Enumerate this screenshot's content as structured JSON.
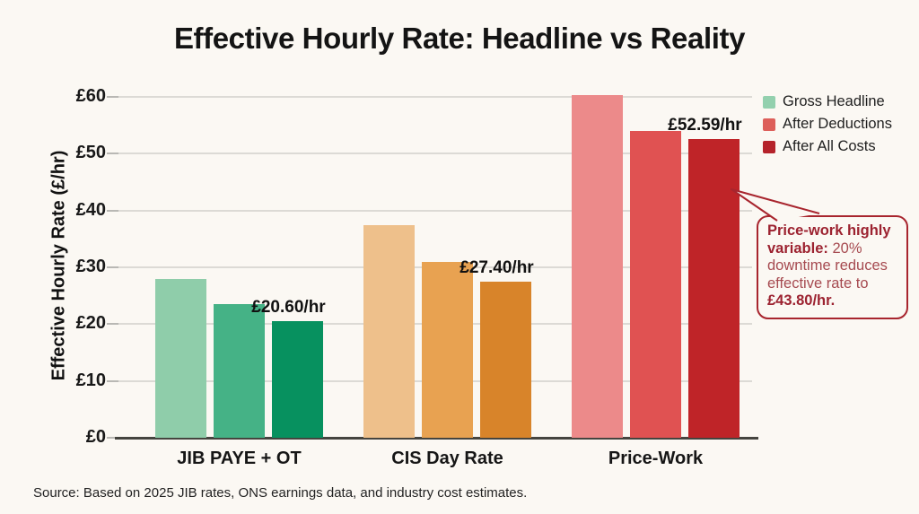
{
  "page": {
    "background": "#fbf8f3"
  },
  "chart_data": {
    "type": "bar",
    "title": "Effective Hourly Rate: Headline vs Reality",
    "ylabel": "Effective Hourly Rate (£/hr)",
    "xlabel": "",
    "ylim": [
      0,
      60
    ],
    "yticks": [
      0,
      10,
      20,
      30,
      40,
      50,
      60
    ],
    "ytick_labels": [
      "£0",
      "£10",
      "£20",
      "£30",
      "£40",
      "£50",
      "£60"
    ],
    "grid": "horizontal",
    "legend_position": "top-right",
    "categories": [
      "JIB PAYE + OT",
      "CIS Day Rate",
      "Price-Work"
    ],
    "series": [
      {
        "name": "Gross Headline",
        "values": [
          28.0,
          37.5,
          60.3
        ]
      },
      {
        "name": "After Deductions",
        "values": [
          23.5,
          31.0,
          54.0
        ]
      },
      {
        "name": "After All Costs",
        "values": [
          20.6,
          27.4,
          52.59
        ]
      }
    ],
    "bar_value_labels": [
      {
        "category_index": 0,
        "series_index": 2,
        "text": "£20.60/hr"
      },
      {
        "category_index": 1,
        "series_index": 2,
        "text": "£27.40/hr"
      },
      {
        "category_index": 2,
        "series_index": 2,
        "text": "£52.59/hr"
      }
    ],
    "category_palettes": [
      [
        "#8fcdaa",
        "#45b286",
        "#07915f"
      ],
      [
        "#eec08b",
        "#e8a251",
        "#d8842a"
      ],
      [
        "#ec8a8a",
        "#e05252",
        "#bf2428"
      ]
    ],
    "legend": [
      {
        "label": "Gross Headline",
        "color": "#93d0ae"
      },
      {
        "label": "After Deductions",
        "color": "#dd5f5a"
      },
      {
        "label": "After All Costs",
        "color": "#b5232b"
      }
    ]
  },
  "annotation": {
    "bold_lead": "Price-work highly variable:",
    "body_text": "20% downtime reduces effective rate to",
    "bold_value": "£43.80/hr.",
    "border_color": "#a8252e",
    "points_to_value": 43.8
  },
  "source": {
    "text": "Source: Based on 2025 JIB rates, ONS earnings data, and industry cost estimates."
  }
}
